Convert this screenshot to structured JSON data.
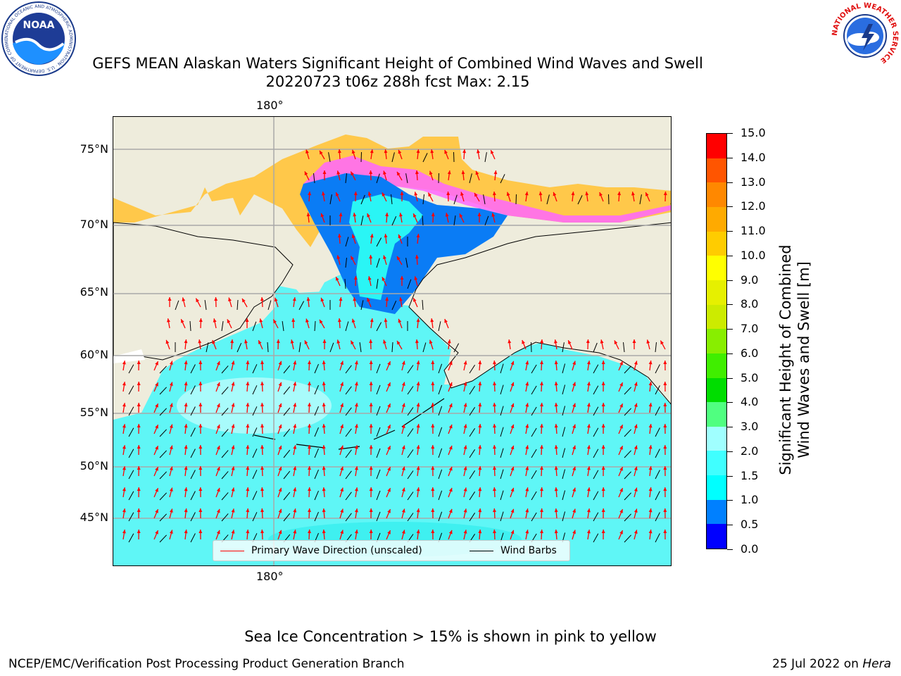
{
  "header": {
    "title_line1": "GEFS MEAN Alaskan Waters Significant Height of Combined Wind Waves and Swell",
    "title_line2": "20220723 t06z 288h fcst   Max: 2.15"
  },
  "logos": {
    "left": {
      "text": "NOAA",
      "ring_text": "NATIONAL OCEANIC AND ATMOSPHERIC ADMINISTRATION · U.S. DEPARTMENT OF COMMERCE"
    },
    "right": {
      "ring_text": "NATIONAL WEATHER SERVICE"
    }
  },
  "map": {
    "lat_labels": [
      "75°N",
      "70°N",
      "65°N",
      "60°N",
      "55°N",
      "50°N",
      "45°N"
    ],
    "lon_label_top": "180°",
    "lon_label_bottom": "180°",
    "land_color": "#eeecdc",
    "sea_ice_colors": [
      "#ff66ff",
      "#ffb347",
      "#ffd24d",
      "#ffcc33"
    ]
  },
  "legend": {
    "wave_dir_label": "Primary Wave Direction (unscaled)",
    "wave_dir_color": "#ff0000",
    "wind_barbs_label": "Wind Barbs",
    "wind_barbs_color": "#000000"
  },
  "colorbar": {
    "title_line1": "Significant Height of Combined",
    "title_line2": "Wind Waves and Swell [m]",
    "ticks": [
      "0.0",
      "0.5",
      "1.0",
      "1.5",
      "2.0",
      "3.0",
      "4.0",
      "5.0",
      "6.0",
      "7.0",
      "8.0",
      "9.0",
      "10.0",
      "11.0",
      "12.0",
      "13.0",
      "14.0",
      "15.0"
    ],
    "colors": [
      "#0000ff",
      "#0080ff",
      "#00ffff",
      "#40ffff",
      "#a0ffff",
      "#50ff80",
      "#00dd00",
      "#40ee00",
      "#88ee00",
      "#cceb00",
      "#e6f000",
      "#ffff00",
      "#ffcc00",
      "#ffaa00",
      "#ff8800",
      "#ff5500",
      "#ff0000"
    ]
  },
  "footer": {
    "sea_ice_note": "Sea Ice Concentration > 15% is shown in pink to yellow",
    "left": "NCEP/EMC/Verification Post Processing Product Generation Branch",
    "right_prefix": "25 Jul 2022 on ",
    "right_host": "Hera"
  }
}
